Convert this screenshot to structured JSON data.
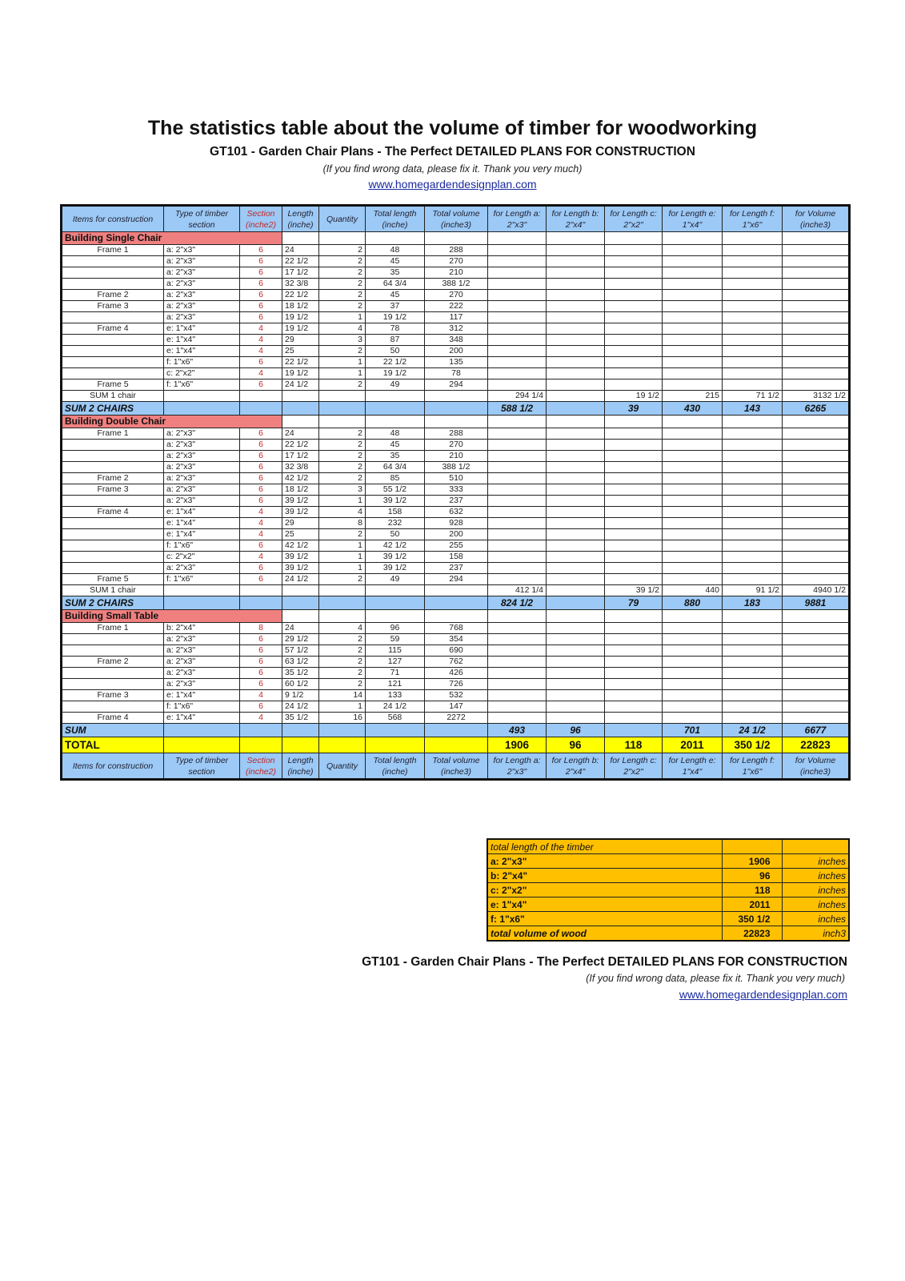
{
  "title": "The statistics table about the volume of timber for woodworking",
  "subtitle": "GT101 - Garden Chair Plans - The Perfect DETAILED PLANS FOR CONSTRUCTION",
  "note": "(If you find wrong data, please fix it. Thank you very much)",
  "link": "www.homegardendesignplan.com",
  "colors": {
    "header_blue": "#9cc9f5",
    "section_pink": "#f08080",
    "total_yellow": "#ffff00",
    "summary_orange": "#ffc000",
    "section_red": "#c0282a"
  },
  "headers": [
    "Items for construction",
    "Type of timber section",
    "Section (inche2)",
    "Length (inche)",
    "Quantity",
    "Total length (inche)",
    "Total volume (inche3)",
    "for Length a: 2\"x3\"",
    "for Length b: 2\"x4\"",
    "for Length c: 2\"x2\"",
    "for Length e: 1\"x4\"",
    "for Length f: 1\"x6\"",
    "for Volume (inche3)"
  ],
  "rows": [
    {
      "kind": "sec",
      "label": "Building Single Chair"
    },
    {
      "kind": "data",
      "cells": [
        "Frame 1",
        "a: 2\"x3\"",
        "6",
        "24",
        "2",
        "48",
        "288"
      ]
    },
    {
      "kind": "data",
      "cells": [
        "",
        "a: 2\"x3\"",
        "6",
        "22 1/2",
        "2",
        "45",
        "270"
      ]
    },
    {
      "kind": "data",
      "cells": [
        "",
        "a: 2\"x3\"",
        "6",
        "17 1/2",
        "2",
        "35",
        "210"
      ]
    },
    {
      "kind": "data",
      "cells": [
        "",
        "a: 2\"x3\"",
        "6",
        "32 3/8",
        "2",
        "64 3/4",
        "388 1/2"
      ]
    },
    {
      "kind": "data",
      "cells": [
        "Frame 2",
        "a: 2\"x3\"",
        "6",
        "22 1/2",
        "2",
        "45",
        "270"
      ]
    },
    {
      "kind": "data",
      "cells": [
        "Frame 3",
        "a: 2\"x3\"",
        "6",
        "18 1/2",
        "2",
        "37",
        "222"
      ]
    },
    {
      "kind": "data",
      "cells": [
        "",
        "a: 2\"x3\"",
        "6",
        "19 1/2",
        "1",
        "19 1/2",
        "117"
      ]
    },
    {
      "kind": "data",
      "cells": [
        "Frame 4",
        "e: 1\"x4\"",
        "4",
        "19 1/2",
        "4",
        "78",
        "312"
      ]
    },
    {
      "kind": "data",
      "cells": [
        "",
        "e: 1\"x4\"",
        "4",
        "29",
        "3",
        "87",
        "348"
      ]
    },
    {
      "kind": "data",
      "cells": [
        "",
        "e: 1\"x4\"",
        "4",
        "25",
        "2",
        "50",
        "200"
      ]
    },
    {
      "kind": "data",
      "cells": [
        "",
        "f: 1\"x6\"",
        "6",
        "22 1/2",
        "1",
        "22 1/2",
        "135"
      ]
    },
    {
      "kind": "data",
      "cells": [
        "",
        "c: 2\"x2\"",
        "4",
        "19 1/2",
        "1",
        "19 1/2",
        "78"
      ]
    },
    {
      "kind": "data",
      "cells": [
        "Frame 5",
        "f: 1\"x6\"",
        "6",
        "24 1/2",
        "2",
        "49",
        "294"
      ]
    },
    {
      "kind": "sum1",
      "cells": [
        "SUM 1 chair",
        "",
        "",
        "",
        "",
        "",
        "",
        "294 1/4",
        "",
        "19 1/2",
        "215",
        "71 1/2",
        "3132 1/2"
      ]
    },
    {
      "kind": "sum2",
      "cells": [
        "SUM 2 CHAIRS",
        "",
        "",
        "",
        "",
        "",
        "",
        "588 1/2",
        "",
        "39",
        "430",
        "143",
        "6265"
      ]
    },
    {
      "kind": "sec",
      "label": "Building Double Chair"
    },
    {
      "kind": "data",
      "cells": [
        "Frame 1",
        "a: 2\"x3\"",
        "6",
        "24",
        "2",
        "48",
        "288"
      ]
    },
    {
      "kind": "data",
      "cells": [
        "",
        "a: 2\"x3\"",
        "6",
        "22 1/2",
        "2",
        "45",
        "270"
      ]
    },
    {
      "kind": "data",
      "cells": [
        "",
        "a: 2\"x3\"",
        "6",
        "17 1/2",
        "2",
        "35",
        "210"
      ]
    },
    {
      "kind": "data",
      "cells": [
        "",
        "a: 2\"x3\"",
        "6",
        "32 3/8",
        "2",
        "64 3/4",
        "388 1/2"
      ]
    },
    {
      "kind": "data",
      "cells": [
        "Frame 2",
        "a: 2\"x3\"",
        "6",
        "42 1/2",
        "2",
        "85",
        "510"
      ]
    },
    {
      "kind": "data",
      "cells": [
        "Frame 3",
        "a: 2\"x3\"",
        "6",
        "18 1/2",
        "3",
        "55 1/2",
        "333"
      ]
    },
    {
      "kind": "data",
      "cells": [
        "",
        "a: 2\"x3\"",
        "6",
        "39 1/2",
        "1",
        "39 1/2",
        "237"
      ]
    },
    {
      "kind": "data",
      "cells": [
        "Frame 4",
        "e: 1\"x4\"",
        "4",
        "39 1/2",
        "4",
        "158",
        "632"
      ]
    },
    {
      "kind": "data",
      "cells": [
        "",
        "e: 1\"x4\"",
        "4",
        "29",
        "8",
        "232",
        "928"
      ]
    },
    {
      "kind": "data",
      "cells": [
        "",
        "e: 1\"x4\"",
        "4",
        "25",
        "2",
        "50",
        "200"
      ]
    },
    {
      "kind": "data",
      "cells": [
        "",
        "f: 1\"x6\"",
        "6",
        "42 1/2",
        "1",
        "42 1/2",
        "255"
      ]
    },
    {
      "kind": "data",
      "cells": [
        "",
        "c: 2\"x2\"",
        "4",
        "39 1/2",
        "1",
        "39 1/2",
        "158"
      ]
    },
    {
      "kind": "data",
      "cells": [
        "",
        "a: 2\"x3\"",
        "6",
        "39 1/2",
        "1",
        "39 1/2",
        "237"
      ]
    },
    {
      "kind": "data",
      "cells": [
        "Frame 5",
        "f: 1\"x6\"",
        "6",
        "24 1/2",
        "2",
        "49",
        "294"
      ]
    },
    {
      "kind": "sum1",
      "cells": [
        "SUM 1 chair",
        "",
        "",
        "",
        "",
        "",
        "",
        "412 1/4",
        "",
        "39 1/2",
        "440",
        "91 1/2",
        "4940 1/2"
      ]
    },
    {
      "kind": "sum2",
      "cells": [
        "SUM 2 CHAIRS",
        "",
        "",
        "",
        "",
        "",
        "",
        "824 1/2",
        "",
        "79",
        "880",
        "183",
        "9881"
      ]
    },
    {
      "kind": "sec",
      "label": "Building Small Table"
    },
    {
      "kind": "data",
      "cells": [
        "Frame 1",
        "b: 2\"x4\"",
        "8",
        "24",
        "4",
        "96",
        "768"
      ]
    },
    {
      "kind": "data",
      "cells": [
        "",
        "a: 2\"x3\"",
        "6",
        "29 1/2",
        "2",
        "59",
        "354"
      ]
    },
    {
      "kind": "data",
      "cells": [
        "",
        "a: 2\"x3\"",
        "6",
        "57 1/2",
        "2",
        "115",
        "690"
      ]
    },
    {
      "kind": "data",
      "cells": [
        "Frame 2",
        "a: 2\"x3\"",
        "6",
        "63 1/2",
        "2",
        "127",
        "762"
      ]
    },
    {
      "kind": "data",
      "cells": [
        "",
        "a: 2\"x3\"",
        "6",
        "35 1/2",
        "2",
        "71",
        "426"
      ]
    },
    {
      "kind": "data",
      "cells": [
        "",
        "a: 2\"x3\"",
        "6",
        "60 1/2",
        "2",
        "121",
        "726"
      ]
    },
    {
      "kind": "data",
      "cells": [
        "Frame 3",
        "e: 1\"x4\"",
        "4",
        "9 1/2",
        "14",
        "133",
        "532"
      ]
    },
    {
      "kind": "data",
      "cells": [
        "",
        "f: 1\"x6\"",
        "6",
        "24 1/2",
        "1",
        "24 1/2",
        "147"
      ]
    },
    {
      "kind": "data",
      "cells": [
        "Frame 4",
        "e: 1\"x4\"",
        "4",
        "35 1/2",
        "16",
        "568",
        "2272"
      ]
    },
    {
      "kind": "sum2",
      "cells": [
        "SUM",
        "",
        "",
        "",
        "",
        "",
        "",
        "493",
        "96",
        "",
        "701",
        "24 1/2",
        "6677"
      ]
    },
    {
      "kind": "total",
      "cells": [
        "TOTAL",
        "",
        "",
        "",
        "",
        "",
        "",
        "1906",
        "96",
        "118",
        "2011",
        "350 1/2",
        "22823"
      ]
    }
  ],
  "summary": {
    "title": "total length of the timber",
    "rows": [
      {
        "name": "a: 2\"x3\"",
        "value": "1906",
        "unit": "inches"
      },
      {
        "name": "b: 2\"x4\"",
        "value": "96",
        "unit": "inches"
      },
      {
        "name": "c: 2\"x2\"",
        "value": "118",
        "unit": "inches"
      },
      {
        "name": "e: 1\"x4\"",
        "value": "2011",
        "unit": "inches"
      },
      {
        "name": "f: 1\"x6\"",
        "value": "350 1/2",
        "unit": "inches"
      },
      {
        "name": "total volume of wood",
        "value": "22823",
        "unit": "inch3"
      }
    ]
  },
  "footer": {
    "subtitle": "GT101 - Garden Chair Plans - The Perfect DETAILED PLANS FOR CONSTRUCTION",
    "note": "(If you find wrong data, please fix it. Thank you very much)",
    "link": "www.homegardendesignplan.com"
  }
}
